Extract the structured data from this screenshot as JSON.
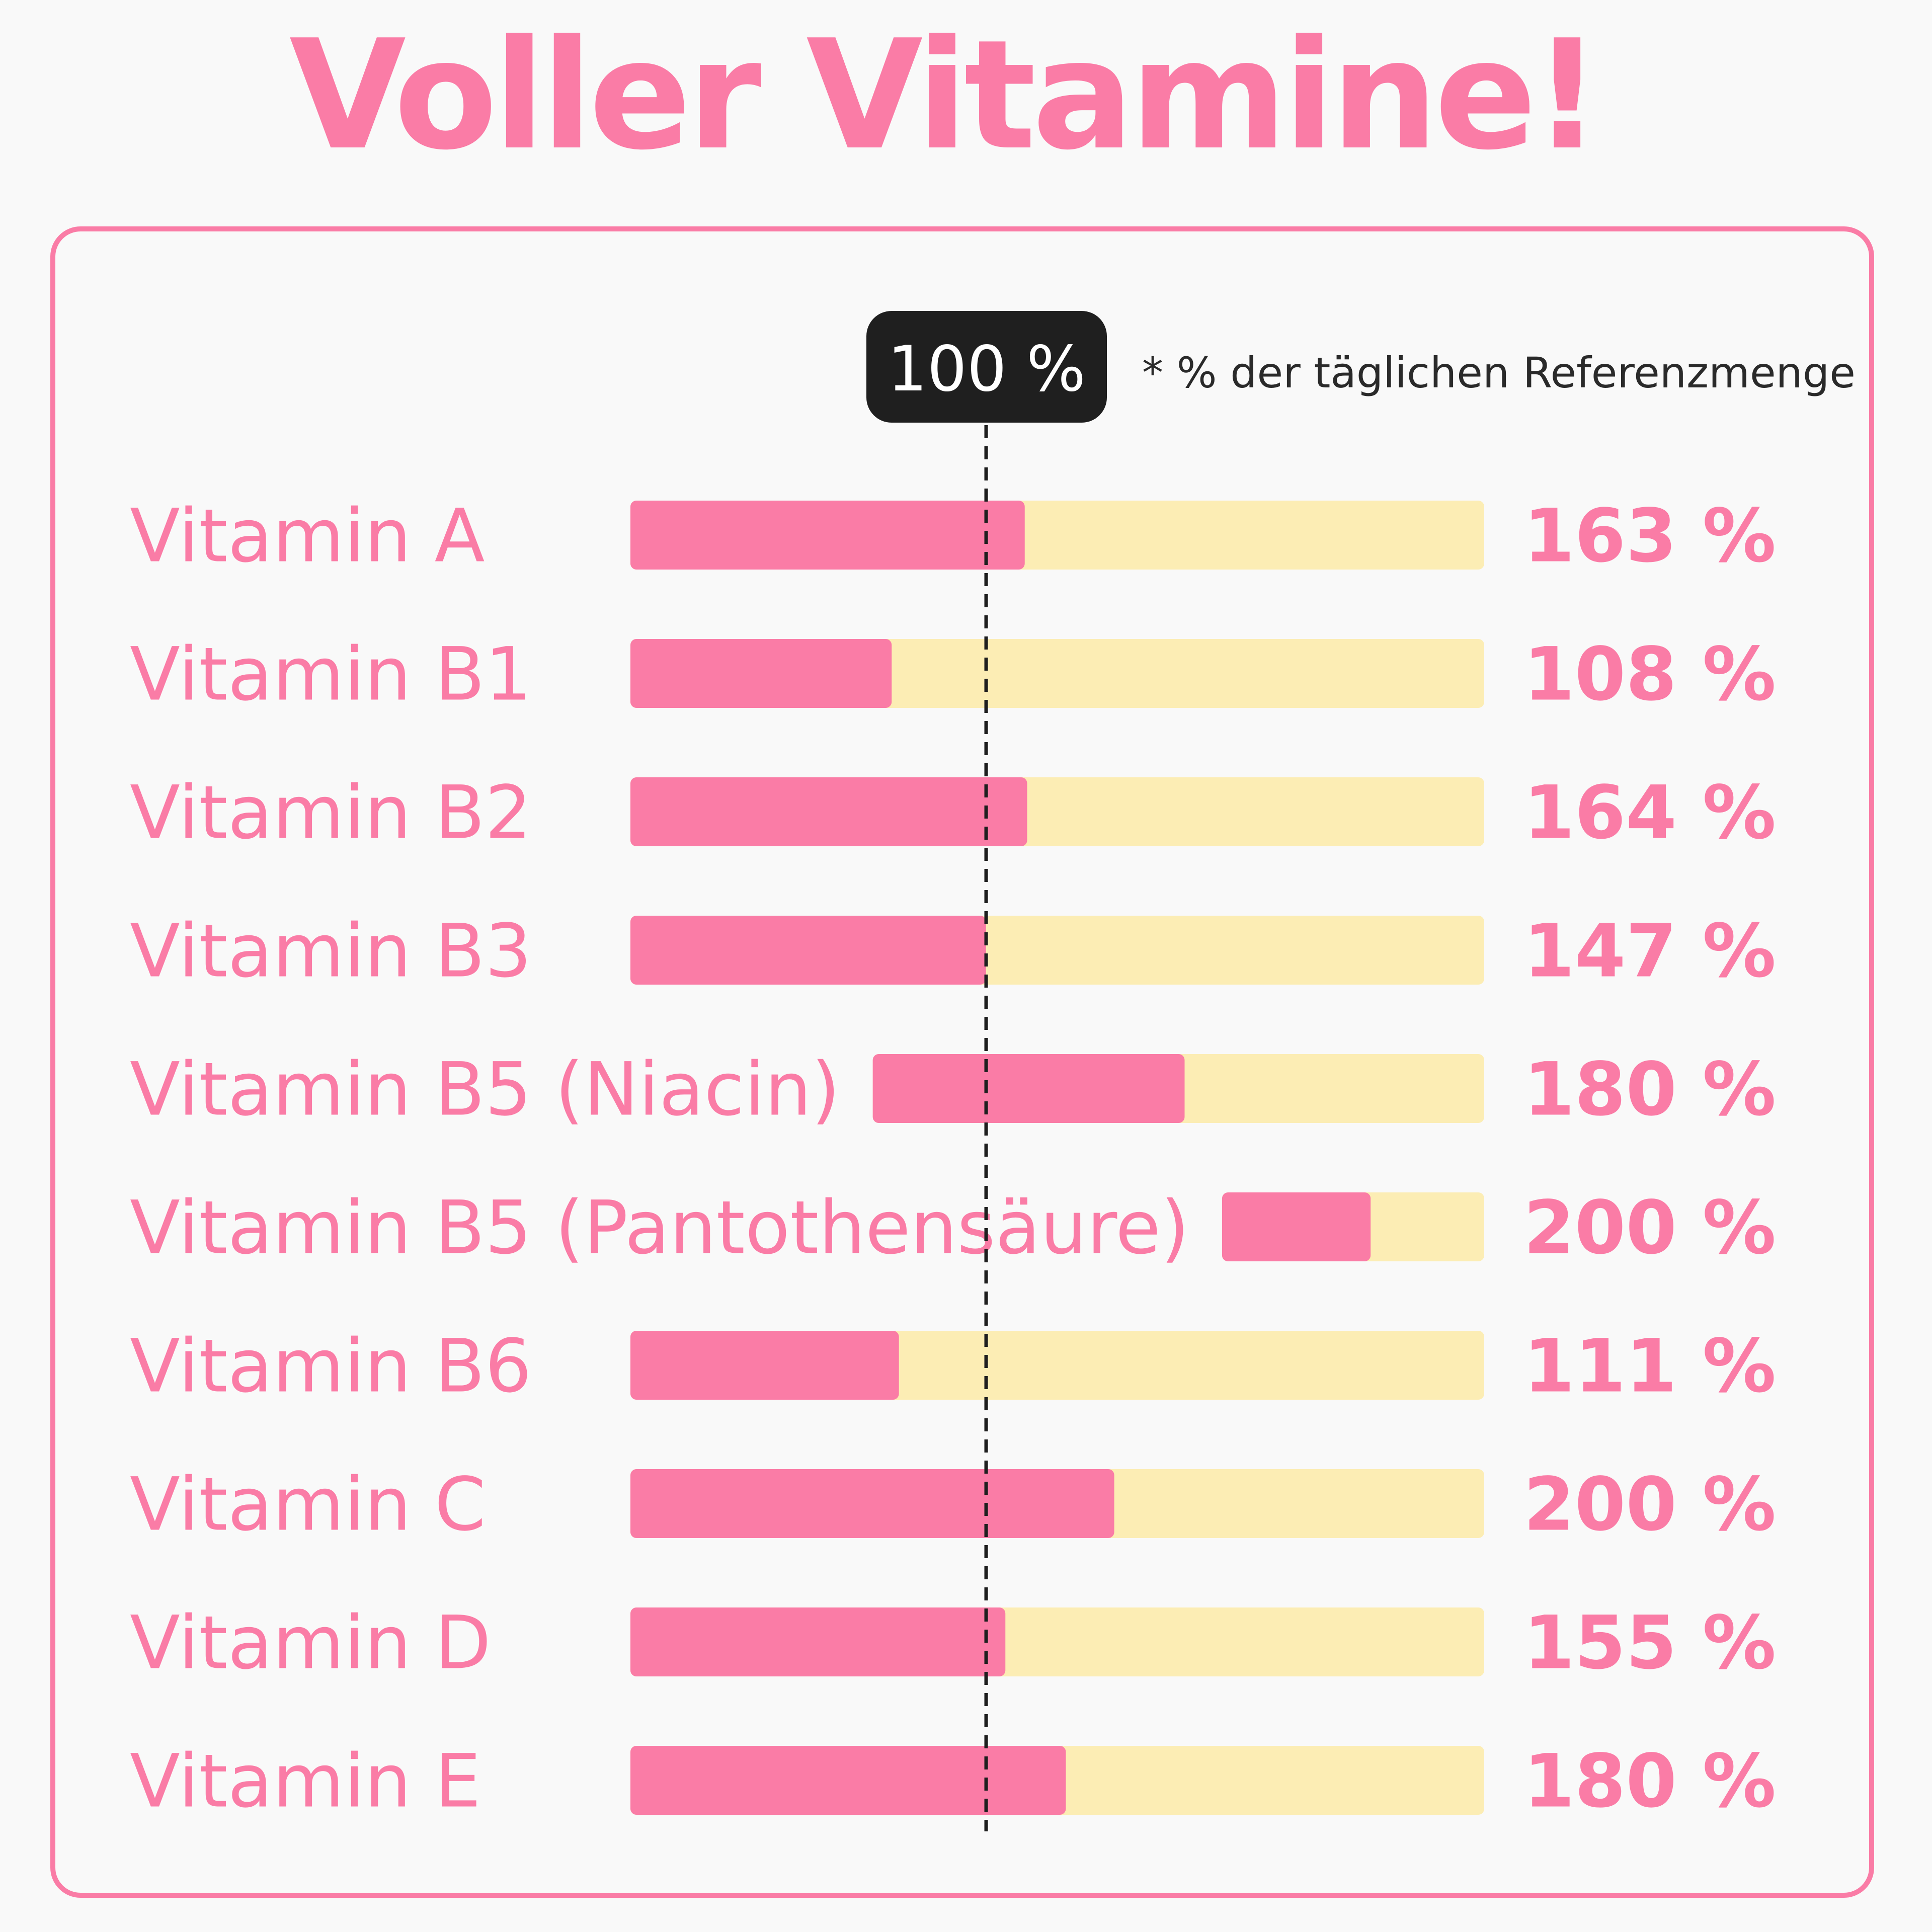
{
  "title": "Voller Vitamine!",
  "colors": {
    "accent": "#fa7ca6",
    "track": "#fcedb4",
    "badge": "#1f1f1f"
  },
  "chart_data": {
    "type": "bar",
    "orientation": "horizontal",
    "reference_value": 100,
    "reference_label": "100 %",
    "reference_note": "* % der täglichen Referenzmenge",
    "categories": [
      "Vitamin A",
      "Vitamin B1",
      "Vitamin B2",
      "Vitamin B3",
      "Vitamin B5 (Niacin)",
      "Vitamin B5 (Pantothensäure)",
      "Vitamin B6",
      "Vitamin C",
      "Vitamin D",
      "Vitamin E"
    ],
    "values": [
      163,
      108,
      164,
      147,
      180,
      200,
      111,
      200,
      155,
      180
    ],
    "value_labels": [
      "163 %",
      "108 %",
      "164 %",
      "147 %",
      "180 %",
      "200 %",
      "111 %",
      "200 %",
      "155 %",
      "180 %"
    ],
    "grid": false,
    "legend": "none"
  }
}
